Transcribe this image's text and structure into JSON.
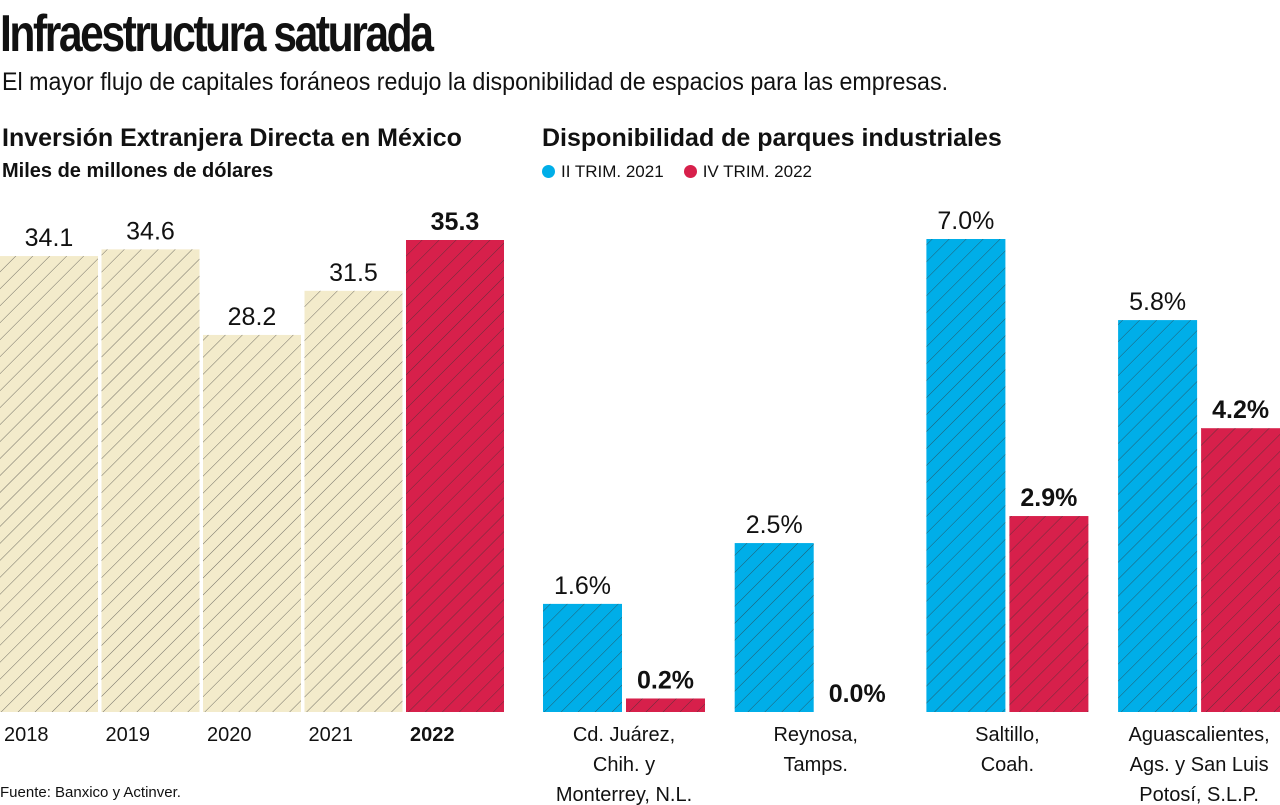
{
  "header": {
    "title": "Infraestructura saturada",
    "subtitle": "El mayor flujo de capitales foráneos redujo la disponibilidad de espacios para las empresas."
  },
  "source": "Fuente: Banxico y Actinver.",
  "chart_data": [
    {
      "type": "bar",
      "title": "Inversión Extranjera Directa en México",
      "ylabel": "Miles de millones de dólares",
      "categories": [
        "2018",
        "2019",
        "2020",
        "2021",
        "2022"
      ],
      "values": [
        34.1,
        34.6,
        28.2,
        31.5,
        35.3
      ],
      "value_labels": [
        "34.1",
        "34.6",
        "28.2",
        "31.5",
        "35.3"
      ],
      "highlight": "2022",
      "colors": {
        "default": "#f3ebcb",
        "highlight": "#d7204b"
      },
      "ylim": [
        0,
        35.3
      ],
      "grid": false
    },
    {
      "type": "bar",
      "title": "Disponibilidad de parques industriales",
      "categories": [
        [
          "Cd. Juárez,",
          "Chih. y",
          "Monterrey, N.L."
        ],
        [
          "Reynosa,",
          "Tamps."
        ],
        [
          "Saltillo,",
          "Coah."
        ],
        [
          "Aguascalientes,",
          "Ags. y San Luis",
          "Potosí, S.L.P."
        ]
      ],
      "series": [
        {
          "name": "II TRIM. 2021",
          "color": "#00aee8",
          "values": [
            1.6,
            2.5,
            7.0,
            5.8
          ],
          "labels": [
            "1.6%",
            "2.5%",
            "7.0%",
            "5.8%"
          ]
        },
        {
          "name": "IV TRIM. 2022",
          "color": "#d7204b",
          "values": [
            0.2,
            0.0,
            2.9,
            4.2
          ],
          "labels": [
            "0.2%",
            "0.0%",
            "2.9%",
            "4.2%"
          ]
        }
      ],
      "legend": "top-left",
      "ylim": [
        0,
        7.0
      ],
      "grid": false
    }
  ]
}
